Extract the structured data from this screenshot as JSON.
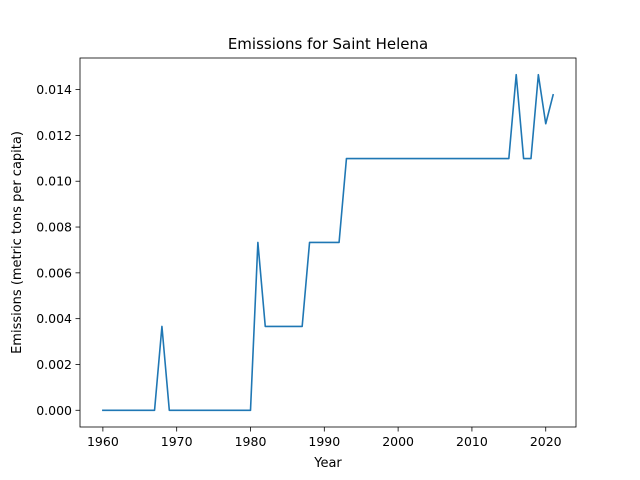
{
  "chart_data": {
    "type": "line",
    "title": "Emissions for Saint Helena",
    "xlabel": "Year",
    "ylabel": "Emissions (metric tons per capita)",
    "xlim": [
      1956.9,
      2024.1
    ],
    "ylim": [
      -0.00073,
      0.01538
    ],
    "x_ticks": [
      1960,
      1970,
      1980,
      1990,
      2000,
      2010,
      2020
    ],
    "x_tick_labels": [
      "1960",
      "1970",
      "1980",
      "1990",
      "2000",
      "2010",
      "2020"
    ],
    "y_ticks": [
      0.0,
      0.002,
      0.004,
      0.006,
      0.008,
      0.01,
      0.012,
      0.014
    ],
    "y_tick_labels": [
      "0.000",
      "0.002",
      "0.004",
      "0.006",
      "0.008",
      "0.010",
      "0.012",
      "0.014"
    ],
    "grid": false,
    "series": [
      {
        "color": "#1f77b4",
        "x": [
          1960,
          1961,
          1962,
          1963,
          1964,
          1965,
          1966,
          1967,
          1968,
          1969,
          1970,
          1971,
          1972,
          1973,
          1974,
          1975,
          1976,
          1977,
          1978,
          1979,
          1980,
          1981,
          1982,
          1983,
          1984,
          1985,
          1986,
          1987,
          1988,
          1989,
          1990,
          1991,
          1992,
          1993,
          1994,
          1995,
          1996,
          1997,
          1998,
          1999,
          2000,
          2001,
          2002,
          2003,
          2004,
          2005,
          2006,
          2007,
          2008,
          2009,
          2010,
          2011,
          2012,
          2013,
          2014,
          2015,
          2016,
          2017,
          2018,
          2019,
          2020,
          2021
        ],
        "y": [
          0,
          0,
          0,
          0,
          0,
          0,
          0,
          0,
          0.00366,
          0,
          0,
          0,
          0,
          0,
          0,
          0,
          0,
          0,
          0,
          0,
          0,
          0.00733,
          0.00366,
          0.00366,
          0.00366,
          0.00366,
          0.00366,
          0.00366,
          0.00733,
          0.00733,
          0.00733,
          0.00733,
          0.00733,
          0.01099,
          0.01099,
          0.01099,
          0.01099,
          0.01099,
          0.01099,
          0.01099,
          0.01099,
          0.01099,
          0.01099,
          0.01099,
          0.01099,
          0.01099,
          0.01099,
          0.01099,
          0.01099,
          0.01099,
          0.01099,
          0.01099,
          0.01099,
          0.01099,
          0.01099,
          0.01099,
          0.01465,
          0.01099,
          0.01099,
          0.01465,
          0.01251,
          0.01377
        ]
      }
    ]
  }
}
